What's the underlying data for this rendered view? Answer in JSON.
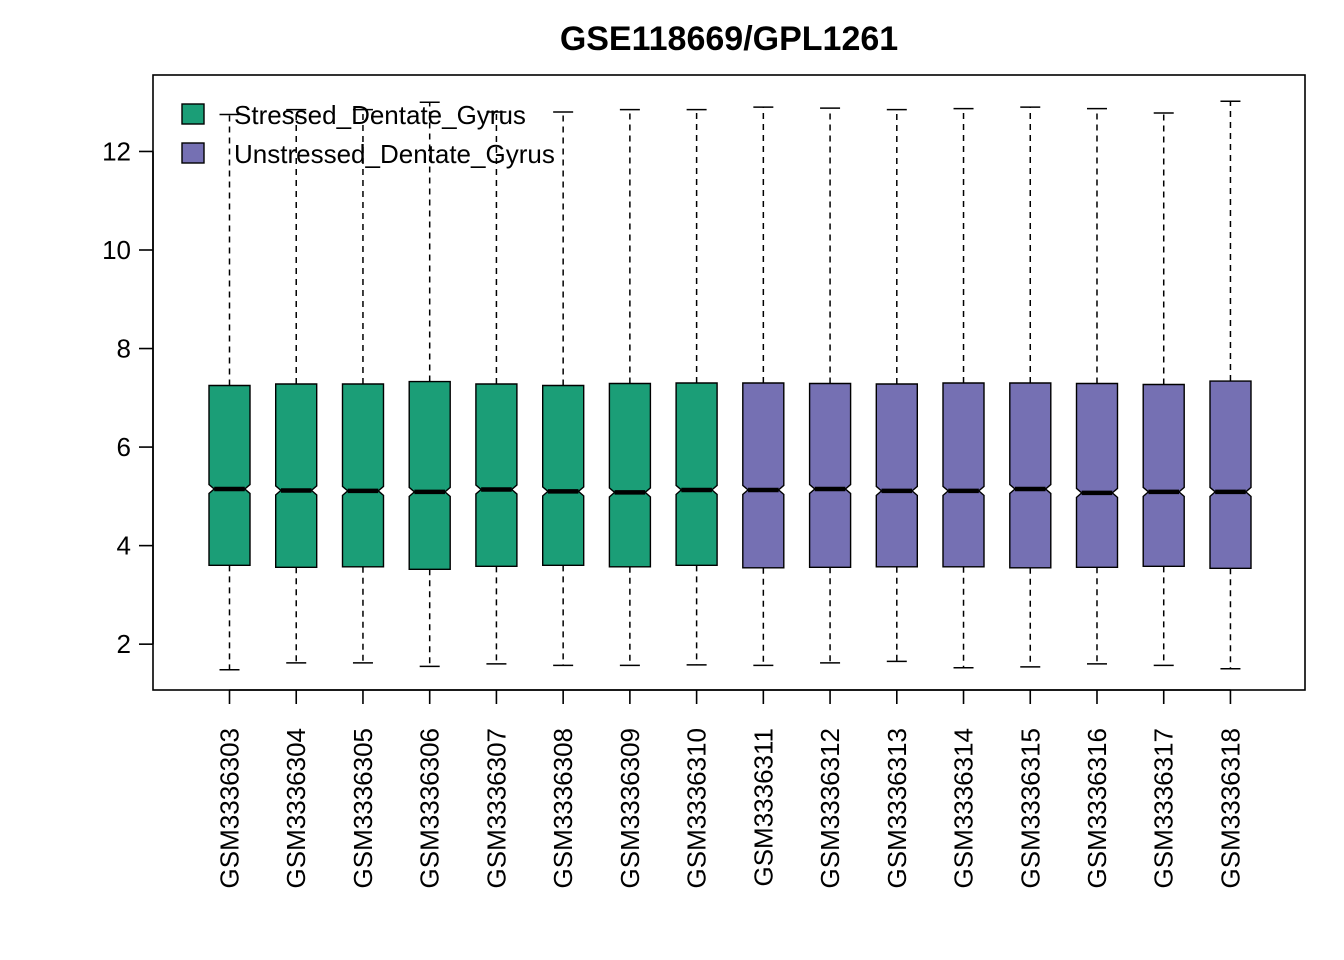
{
  "chart_data": {
    "type": "boxplot",
    "title": "GSE118669/GPL1261",
    "xlabel": "",
    "ylabel": "",
    "ylim": [
      1,
      13
    ],
    "y_ticks": [
      2,
      4,
      6,
      8,
      10,
      12
    ],
    "grid": false,
    "notched": true,
    "legend": {
      "position": "top-left",
      "entries": [
        {
          "label": "Stressed_Dentate_Gyrus",
          "color": "#1B9E77"
        },
        {
          "label": "Unstressed_Dentate_Gyrus",
          "color": "#7570B3"
        }
      ]
    },
    "samples": [
      {
        "name": "GSM3336303",
        "group": "Stressed_Dentate_Gyrus",
        "min": 1.48,
        "q1": 3.6,
        "median": 5.15,
        "q3": 7.25,
        "max": 12.75
      },
      {
        "name": "GSM3336304",
        "group": "Stressed_Dentate_Gyrus",
        "min": 1.62,
        "q1": 3.56,
        "median": 5.12,
        "q3": 7.28,
        "max": 12.85
      },
      {
        "name": "GSM3336305",
        "group": "Stressed_Dentate_Gyrus",
        "min": 1.62,
        "q1": 3.57,
        "median": 5.11,
        "q3": 7.28,
        "max": 12.85
      },
      {
        "name": "GSM3336306",
        "group": "Stressed_Dentate_Gyrus",
        "min": 1.55,
        "q1": 3.52,
        "median": 5.09,
        "q3": 7.33,
        "max": 13.0
      },
      {
        "name": "GSM3336307",
        "group": "Stressed_Dentate_Gyrus",
        "min": 1.6,
        "q1": 3.58,
        "median": 5.14,
        "q3": 7.28,
        "max": 12.8
      },
      {
        "name": "GSM3336308",
        "group": "Stressed_Dentate_Gyrus",
        "min": 1.57,
        "q1": 3.6,
        "median": 5.1,
        "q3": 7.25,
        "max": 12.8
      },
      {
        "name": "GSM3336309",
        "group": "Stressed_Dentate_Gyrus",
        "min": 1.57,
        "q1": 3.57,
        "median": 5.08,
        "q3": 7.29,
        "max": 12.85
      },
      {
        "name": "GSM3336310",
        "group": "Stressed_Dentate_Gyrus",
        "min": 1.58,
        "q1": 3.6,
        "median": 5.13,
        "q3": 7.3,
        "max": 12.85
      },
      {
        "name": "GSM3336311",
        "group": "Unstressed_Dentate_Gyrus",
        "min": 1.57,
        "q1": 3.55,
        "median": 5.13,
        "q3": 7.3,
        "max": 12.9
      },
      {
        "name": "GSM3336312",
        "group": "Unstressed_Dentate_Gyrus",
        "min": 1.62,
        "q1": 3.56,
        "median": 5.15,
        "q3": 7.29,
        "max": 12.88
      },
      {
        "name": "GSM3336313",
        "group": "Unstressed_Dentate_Gyrus",
        "min": 1.65,
        "q1": 3.57,
        "median": 5.11,
        "q3": 7.28,
        "max": 12.85
      },
      {
        "name": "GSM3336314",
        "group": "Unstressed_Dentate_Gyrus",
        "min": 1.52,
        "q1": 3.57,
        "median": 5.11,
        "q3": 7.3,
        "max": 12.87
      },
      {
        "name": "GSM3336315",
        "group": "Unstressed_Dentate_Gyrus",
        "min": 1.54,
        "q1": 3.55,
        "median": 5.15,
        "q3": 7.3,
        "max": 12.9
      },
      {
        "name": "GSM3336316",
        "group": "Unstressed_Dentate_Gyrus",
        "min": 1.6,
        "q1": 3.56,
        "median": 5.07,
        "q3": 7.29,
        "max": 12.87
      },
      {
        "name": "GSM3336317",
        "group": "Unstressed_Dentate_Gyrus",
        "min": 1.57,
        "q1": 3.58,
        "median": 5.09,
        "q3": 7.27,
        "max": 12.78
      },
      {
        "name": "GSM3336318",
        "group": "Unstressed_Dentate_Gyrus",
        "min": 1.5,
        "q1": 3.54,
        "median": 5.09,
        "q3": 7.34,
        "max": 13.02
      }
    ]
  }
}
